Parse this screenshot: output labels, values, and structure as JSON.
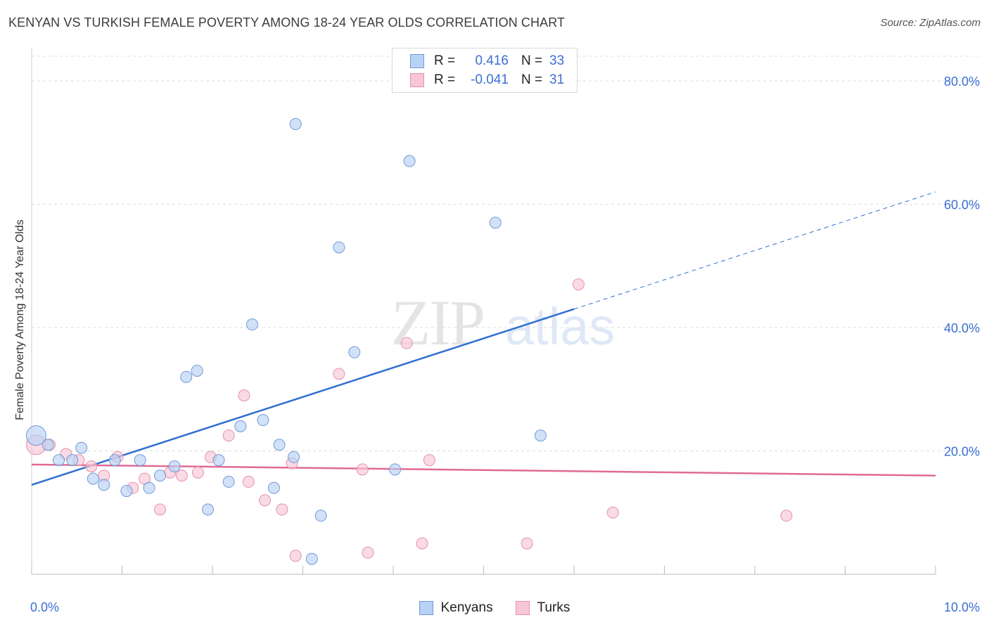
{
  "header": {
    "title": "KENYAN VS TURKISH FEMALE POVERTY AMONG 18-24 YEAR OLDS CORRELATION CHART",
    "source": "Source: ZipAtlas.com"
  },
  "watermark": {
    "zip": "ZIP",
    "atlas": "atlas"
  },
  "legend_top": {
    "rows": [
      {
        "r_label": "R =",
        "r_value": "0.416",
        "n_label": "N =",
        "n_value": "33"
      },
      {
        "r_label": "R =",
        "r_value": "-0.041",
        "n_label": "N =",
        "n_value": "31"
      }
    ]
  },
  "colors": {
    "kenyans_fill": "#b9d1f5",
    "kenyans_stroke": "#6f9ad8",
    "kenyans_line": "#2f6fd1",
    "turks_fill": "#f8c6d6",
    "turks_stroke": "#e592ad",
    "turks_line": "#e06a96",
    "grid": "#dddddd",
    "tick_label": "#3b6fd4"
  },
  "chart_data": {
    "type": "scatter",
    "title": "KENYAN VS TURKISH FEMALE POVERTY AMONG 18-24 YEAR OLDS CORRELATION CHART",
    "xlabel": "",
    "ylabel": "Female Poverty Among 18-24 Year Olds",
    "xlim": [
      0,
      10
    ],
    "ylim": [
      0,
      84
    ],
    "x_tick_labels": {
      "min": "0.0%",
      "max": "10.0%"
    },
    "y_ticks": [
      20,
      40,
      60,
      80
    ],
    "y_tick_labels": [
      "20.0%",
      "40.0%",
      "60.0%",
      "80.0%"
    ],
    "grid": true,
    "legend_placement": "bottom-center",
    "series": [
      {
        "name": "Kenyans",
        "r": 0.416,
        "n": 33,
        "points": [
          [
            0.05,
            22.5
          ],
          [
            0.18,
            21.0
          ],
          [
            0.3,
            18.5
          ],
          [
            0.45,
            18.5
          ],
          [
            0.55,
            20.5
          ],
          [
            0.68,
            15.5
          ],
          [
            0.8,
            14.5
          ],
          [
            0.92,
            18.5
          ],
          [
            1.05,
            13.5
          ],
          [
            1.2,
            18.5
          ],
          [
            1.3,
            14.0
          ],
          [
            1.42,
            16.0
          ],
          [
            1.58,
            17.5
          ],
          [
            1.71,
            32.0
          ],
          [
            1.83,
            33.0
          ],
          [
            1.95,
            10.5
          ],
          [
            2.07,
            18.5
          ],
          [
            2.18,
            15.0
          ],
          [
            2.31,
            24.0
          ],
          [
            2.44,
            40.5
          ],
          [
            2.56,
            25.0
          ],
          [
            2.68,
            14.0
          ],
          [
            2.74,
            21.0
          ],
          [
            2.9,
            19.0
          ],
          [
            2.92,
            73.0
          ],
          [
            3.1,
            2.5
          ],
          [
            3.2,
            9.5
          ],
          [
            3.4,
            53.0
          ],
          [
            3.57,
            36.0
          ],
          [
            4.02,
            17.0
          ],
          [
            4.18,
            67.0
          ],
          [
            5.13,
            57.0
          ],
          [
            5.63,
            22.5
          ]
        ]
      },
      {
        "name": "Turks",
        "r": -0.041,
        "n": 31,
        "points": [
          [
            0.05,
            21.0
          ],
          [
            0.2,
            21.0
          ],
          [
            0.38,
            19.5
          ],
          [
            0.52,
            18.5
          ],
          [
            0.66,
            17.5
          ],
          [
            0.8,
            16.0
          ],
          [
            0.95,
            19.0
          ],
          [
            1.12,
            14.0
          ],
          [
            1.25,
            15.5
          ],
          [
            1.42,
            10.5
          ],
          [
            1.53,
            16.5
          ],
          [
            1.66,
            16.0
          ],
          [
            1.84,
            16.5
          ],
          [
            1.98,
            19.0
          ],
          [
            2.18,
            22.5
          ],
          [
            2.35,
            29.0
          ],
          [
            2.4,
            15.0
          ],
          [
            2.58,
            12.0
          ],
          [
            2.77,
            10.5
          ],
          [
            2.88,
            18.0
          ],
          [
            2.92,
            3.0
          ],
          [
            3.4,
            32.5
          ],
          [
            3.66,
            17.0
          ],
          [
            3.72,
            3.5
          ],
          [
            4.15,
            37.5
          ],
          [
            4.32,
            5.0
          ],
          [
            4.4,
            18.5
          ],
          [
            5.48,
            5.0
          ],
          [
            6.05,
            47.0
          ],
          [
            6.43,
            10.0
          ],
          [
            8.35,
            9.5
          ]
        ]
      }
    ],
    "trend_lines": [
      {
        "series": "Kenyans",
        "start": [
          0,
          14.5
        ],
        "end": [
          6.0,
          43.0
        ],
        "dashed_to": [
          10.0,
          62.0
        ]
      },
      {
        "series": "Turks",
        "start": [
          0,
          17.8
        ],
        "end": [
          10.0,
          16.0
        ]
      }
    ]
  },
  "legend_bottom": {
    "items": [
      {
        "label": "Kenyans"
      },
      {
        "label": "Turks"
      }
    ]
  }
}
